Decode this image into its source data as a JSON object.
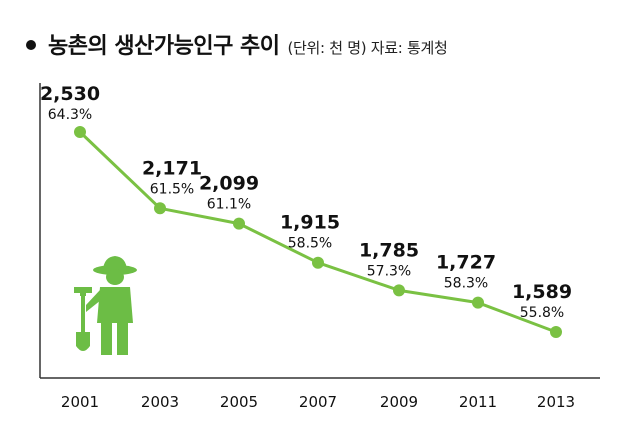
{
  "header": {
    "title": "농촌의 생산가능인구 추이",
    "subtitle": "(단위: 천 명) 자료: 통계청"
  },
  "colors": {
    "series": "#7ac143",
    "axis": "#333333",
    "text": "#111111"
  },
  "illustration": {
    "icon": "farmer-with-shovel-icon",
    "color": "#6cbd45"
  },
  "chart_data": {
    "type": "line",
    "title": "농촌의 생산가능인구 추이",
    "unit": "천 명",
    "source": "통계청",
    "x": [
      "2001",
      "2003",
      "2005",
      "2007",
      "2009",
      "2011",
      "2013"
    ],
    "series": [
      {
        "values": [
          2530,
          2171,
          2099,
          1915,
          1785,
          1727,
          1589
        ],
        "value_labels": [
          "2,530",
          "2,171",
          "2,099",
          "1,915",
          "1,785",
          "1,727",
          "1,589"
        ],
        "share_labels": [
          "64.3%",
          "61.5%",
          "61.1%",
          "58.5%",
          "57.3%",
          "58.3%",
          "55.8%"
        ]
      }
    ],
    "grid": false,
    "legend": "none"
  }
}
